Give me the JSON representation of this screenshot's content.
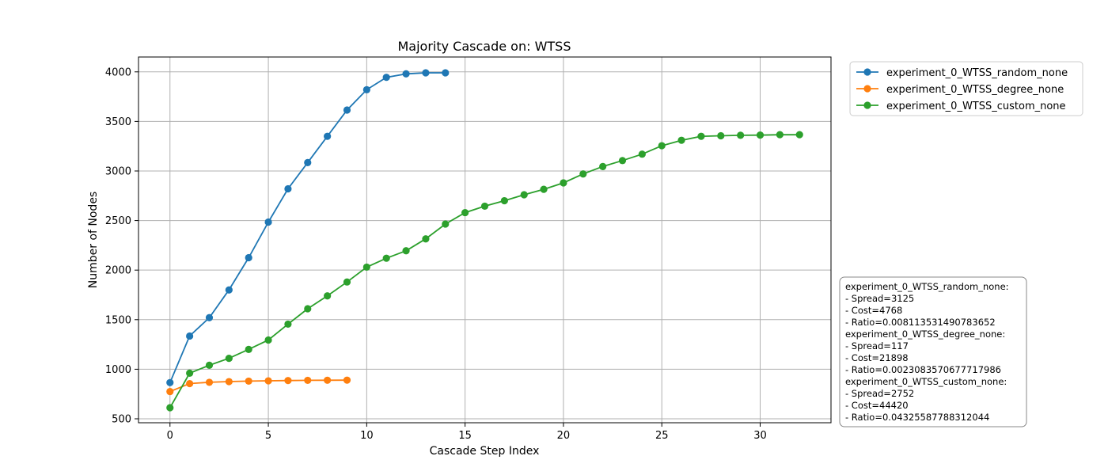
{
  "chart_data": {
    "type": "line",
    "title": "Majority Cascade on: WTSS",
    "xlabel": "Cascade Step Index",
    "ylabel": "Number of Nodes",
    "xlim": [
      -1.6,
      33.6
    ],
    "ylim": [
      460,
      4150
    ],
    "xticks": [
      0,
      5,
      10,
      15,
      20,
      25,
      30
    ],
    "yticks": [
      500,
      1000,
      1500,
      2000,
      2500,
      3000,
      3500,
      4000
    ],
    "grid": true,
    "legend_position": "outside-top-right",
    "series": [
      {
        "name": "experiment_0_WTSS_random_none",
        "color": "#1f77b4",
        "x": [
          0,
          1,
          2,
          3,
          4,
          5,
          6,
          7,
          8,
          9,
          10,
          11,
          12,
          13,
          14
        ],
        "y": [
          865,
          1335,
          1520,
          1800,
          2125,
          2485,
          2820,
          3085,
          3350,
          3615,
          3820,
          3945,
          3980,
          3990,
          3990
        ]
      },
      {
        "name": "experiment_0_WTSS_degree_none",
        "color": "#ff7f0e",
        "x": [
          0,
          1,
          2,
          3,
          4,
          5,
          6,
          7,
          8,
          9
        ],
        "y": [
          775,
          855,
          868,
          875,
          880,
          883,
          886,
          888,
          889,
          890
        ]
      },
      {
        "name": "experiment_0_WTSS_custom_none",
        "color": "#2ca02c",
        "x": [
          0,
          1,
          2,
          3,
          4,
          5,
          6,
          7,
          8,
          9,
          10,
          11,
          12,
          13,
          14,
          15,
          16,
          17,
          18,
          19,
          20,
          21,
          22,
          23,
          24,
          25,
          26,
          27,
          28,
          29,
          30,
          31,
          32
        ],
        "y": [
          612,
          960,
          1040,
          1110,
          1200,
          1295,
          1455,
          1610,
          1740,
          1880,
          2030,
          2120,
          2195,
          2315,
          2465,
          2580,
          2645,
          2700,
          2760,
          2815,
          2880,
          2970,
          3045,
          3105,
          3170,
          3255,
          3310,
          3350,
          3355,
          3360,
          3362,
          3366,
          3366
        ]
      }
    ],
    "annotation_lines": [
      "experiment_0_WTSS_random_none:",
      "- Spread=3125",
      "- Cost=4768",
      "- Ratio=0.008113531490783652",
      "experiment_0_WTSS_degree_none:",
      "- Spread=117",
      "- Cost=21898",
      "- Ratio=0.0023083570677717986",
      "experiment_0_WTSS_custom_none:",
      "- Spread=2752",
      "- Cost=44420",
      "- Ratio=0.04325587788312044"
    ]
  }
}
